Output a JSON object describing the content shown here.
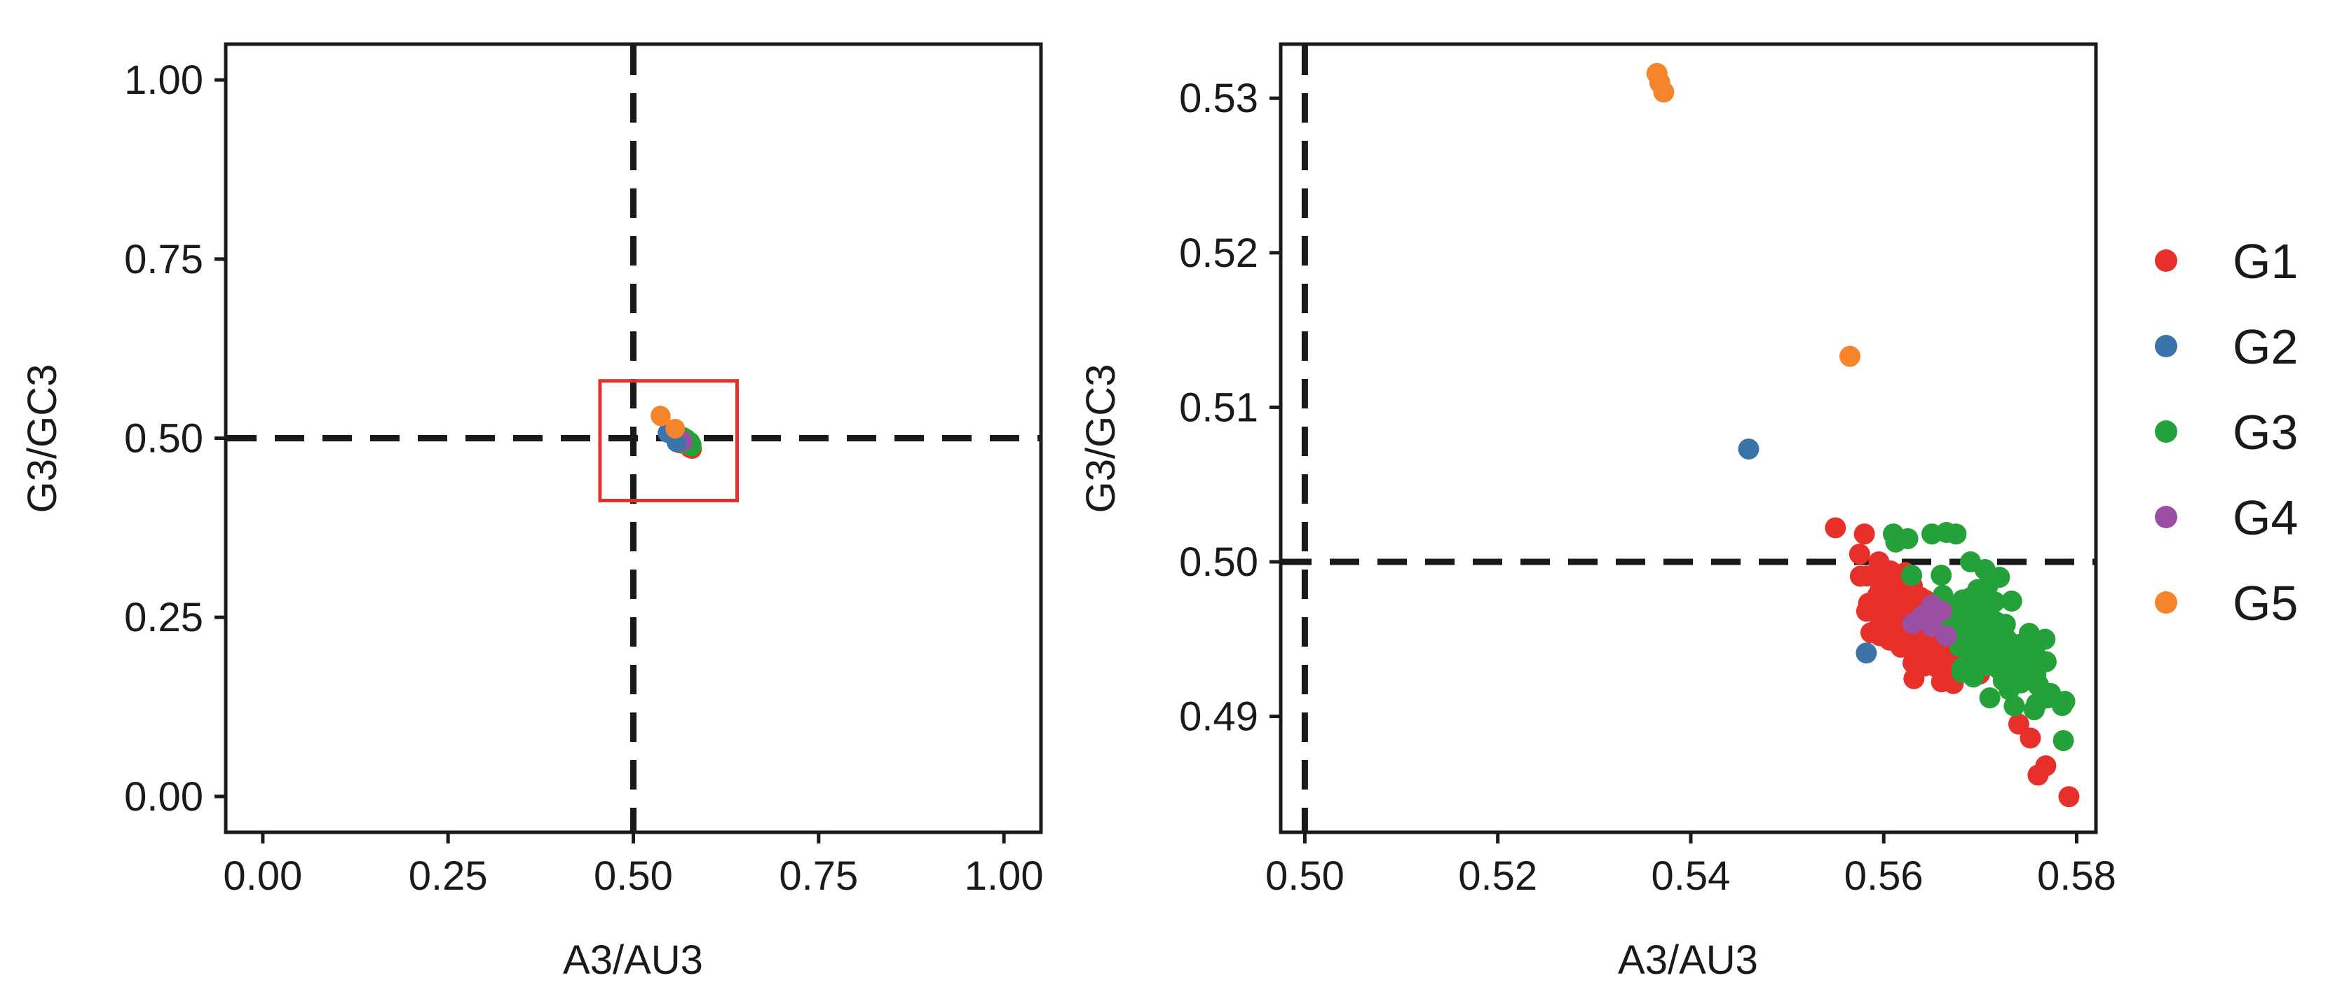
{
  "chart_data": [
    {
      "type": "scatter",
      "panel": "left",
      "xlabel": "A3/AU3",
      "ylabel": "G3/GC3",
      "xlim": [
        -0.05,
        1.05
      ],
      "ylim": [
        -0.05,
        1.05
      ],
      "xticks": [
        "0.00",
        "0.25",
        "0.50",
        "0.75",
        "1.00"
      ],
      "yticks": [
        "0.00",
        "0.25",
        "0.50",
        "0.75",
        "1.00"
      ],
      "reference_lines": {
        "x": 0.5,
        "y": 0.5,
        "style": "dashed",
        "color": "#1a1a1a"
      },
      "highlight_box": {
        "x": [
          0.455,
          0.64
        ],
        "y": [
          0.413,
          0.58
        ],
        "color": "#e8302a"
      },
      "grid": false,
      "legend": "none"
    },
    {
      "type": "scatter",
      "panel": "right",
      "xlabel": "A3/AU3",
      "ylabel": "G3/GC3",
      "xlim": [
        0.4975,
        0.582
      ],
      "ylim": [
        0.4825,
        0.5335
      ],
      "xticks": [
        "0.50",
        "0.52",
        "0.54",
        "0.56",
        "0.58"
      ],
      "yticks": [
        "0.49",
        "0.50",
        "0.51",
        "0.52",
        "0.53"
      ],
      "reference_lines": {
        "x": 0.5,
        "y": 0.5,
        "style": "dashed",
        "color": "#1a1a1a"
      },
      "grid": false,
      "legend": "right",
      "series": [
        {
          "name": "G1",
          "color": "#e8302a"
        },
        {
          "name": "G2",
          "color": "#3b74a8"
        },
        {
          "name": "G3",
          "color": "#25a13a"
        },
        {
          "name": "G4",
          "color": "#9b4fa3"
        },
        {
          "name": "G5",
          "color": "#f5842a"
        }
      ]
    }
  ]
}
